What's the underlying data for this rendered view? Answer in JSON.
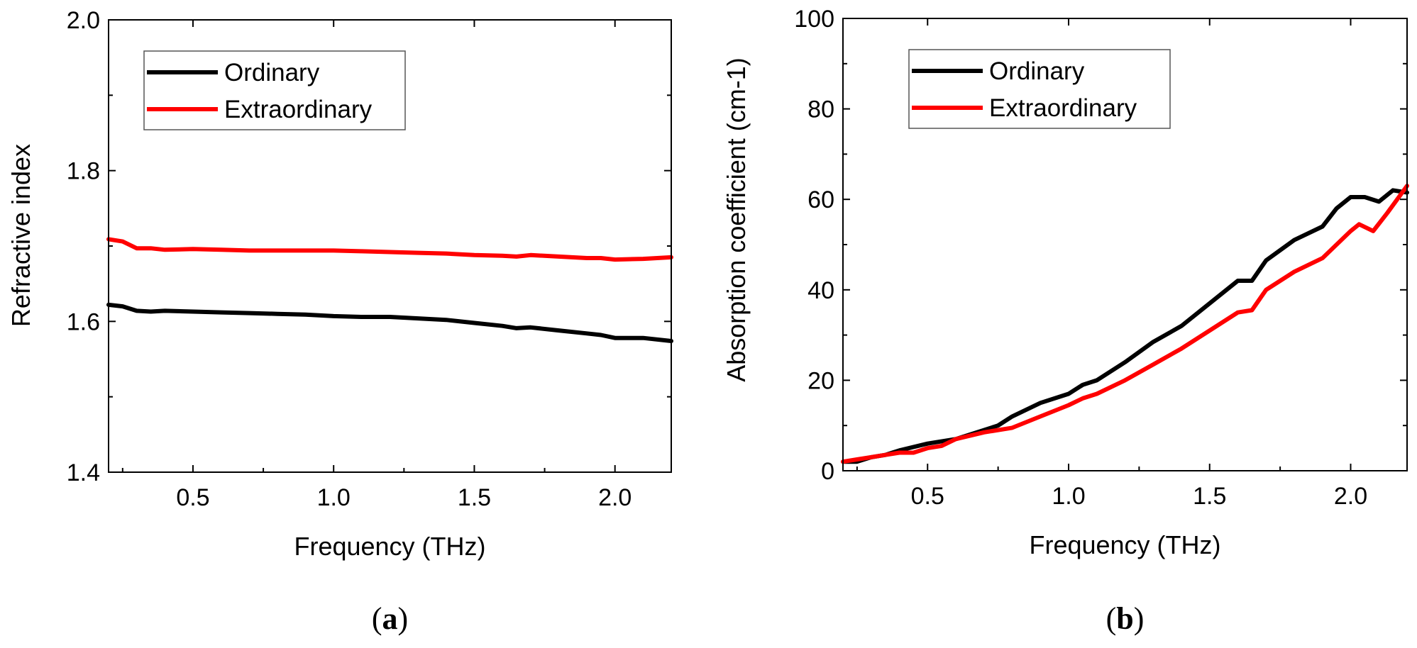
{
  "colors": {
    "ordinary": "#000000",
    "extraordinary": "#ff0000"
  },
  "chart_data": [
    {
      "type": "line",
      "panel": "a",
      "panel_label": {
        "open": "(",
        "letter": "a",
        "close": ")"
      },
      "xlabel": "Frequency (THz)",
      "ylabel": "Refractive index",
      "xlim": [
        0.2,
        2.2
      ],
      "ylim": [
        1.4,
        2.0
      ],
      "xticks": [
        0.5,
        1.0,
        1.5,
        2.0
      ],
      "xtick_labels": [
        "0.5",
        "1.0",
        "1.5",
        "2.0"
      ],
      "yticks": [
        1.4,
        1.6,
        1.8,
        2.0
      ],
      "ytick_labels": [
        "1.4",
        "1.6",
        "1.8",
        "2.0"
      ],
      "legend_position": "top-left",
      "series": [
        {
          "name": "Ordinary",
          "x": [
            0.2,
            0.25,
            0.3,
            0.35,
            0.4,
            0.5,
            0.6,
            0.7,
            0.8,
            0.9,
            1.0,
            1.1,
            1.2,
            1.3,
            1.4,
            1.5,
            1.6,
            1.65,
            1.7,
            1.8,
            1.9,
            1.95,
            2.0,
            2.1,
            2.2
          ],
          "values": [
            1.622,
            1.62,
            1.614,
            1.613,
            1.614,
            1.613,
            1.612,
            1.611,
            1.61,
            1.609,
            1.607,
            1.606,
            1.606,
            1.604,
            1.602,
            1.598,
            1.594,
            1.591,
            1.592,
            1.588,
            1.584,
            1.582,
            1.578,
            1.578,
            1.574
          ]
        },
        {
          "name": "Extraordinary",
          "x": [
            0.2,
            0.25,
            0.3,
            0.35,
            0.4,
            0.5,
            0.6,
            0.7,
            0.8,
            0.9,
            1.0,
            1.1,
            1.2,
            1.3,
            1.4,
            1.5,
            1.6,
            1.65,
            1.7,
            1.8,
            1.9,
            1.95,
            2.0,
            2.1,
            2.2
          ],
          "values": [
            1.709,
            1.706,
            1.697,
            1.697,
            1.695,
            1.696,
            1.695,
            1.694,
            1.694,
            1.694,
            1.694,
            1.693,
            1.692,
            1.691,
            1.69,
            1.688,
            1.687,
            1.686,
            1.688,
            1.686,
            1.684,
            1.684,
            1.682,
            1.683,
            1.685
          ]
        }
      ]
    },
    {
      "type": "line",
      "panel": "b",
      "panel_label": {
        "open": "(",
        "letter": "b",
        "close": ")"
      },
      "xlabel": "Frequency (THz)",
      "ylabel": "Absorption coefficient (cm-1)",
      "xlim": [
        0.2,
        2.2
      ],
      "ylim": [
        0,
        100
      ],
      "xticks": [
        0.5,
        1.0,
        1.5,
        2.0
      ],
      "xtick_labels": [
        "0.5",
        "1.0",
        "1.5",
        "2.0"
      ],
      "yticks": [
        0,
        20,
        40,
        60,
        80,
        100
      ],
      "ytick_labels": [
        "0",
        "20",
        "40",
        "60",
        "80",
        "100"
      ],
      "legend_position": "top-left",
      "series": [
        {
          "name": "Ordinary",
          "x": [
            0.2,
            0.25,
            0.3,
            0.35,
            0.4,
            0.5,
            0.6,
            0.7,
            0.75,
            0.8,
            0.9,
            1.0,
            1.05,
            1.1,
            1.2,
            1.3,
            1.4,
            1.5,
            1.6,
            1.65,
            1.7,
            1.8,
            1.9,
            1.95,
            2.0,
            2.05,
            2.1,
            2.15,
            2.2
          ],
          "values": [
            2,
            2,
            3,
            3.5,
            4.5,
            6,
            7,
            9,
            10,
            12,
            15,
            17,
            19,
            20,
            24,
            28.5,
            32,
            37,
            42,
            42,
            46.5,
            51,
            54,
            58,
            60.5,
            60.5,
            59.5,
            62,
            61.5
          ]
        },
        {
          "name": "Extraordinary",
          "x": [
            0.2,
            0.25,
            0.3,
            0.35,
            0.4,
            0.45,
            0.5,
            0.55,
            0.6,
            0.7,
            0.8,
            0.9,
            1.0,
            1.05,
            1.1,
            1.2,
            1.3,
            1.4,
            1.5,
            1.6,
            1.65,
            1.7,
            1.8,
            1.9,
            2.0,
            2.03,
            2.08,
            2.13,
            2.2
          ],
          "values": [
            2,
            2.5,
            3,
            3.5,
            4,
            4,
            5,
            5.5,
            7,
            8.5,
            9.5,
            12,
            14.5,
            16,
            17,
            20,
            23.5,
            27,
            31,
            35,
            35.5,
            40,
            44,
            47,
            53,
            54.5,
            53,
            57,
            63
          ]
        }
      ]
    }
  ]
}
